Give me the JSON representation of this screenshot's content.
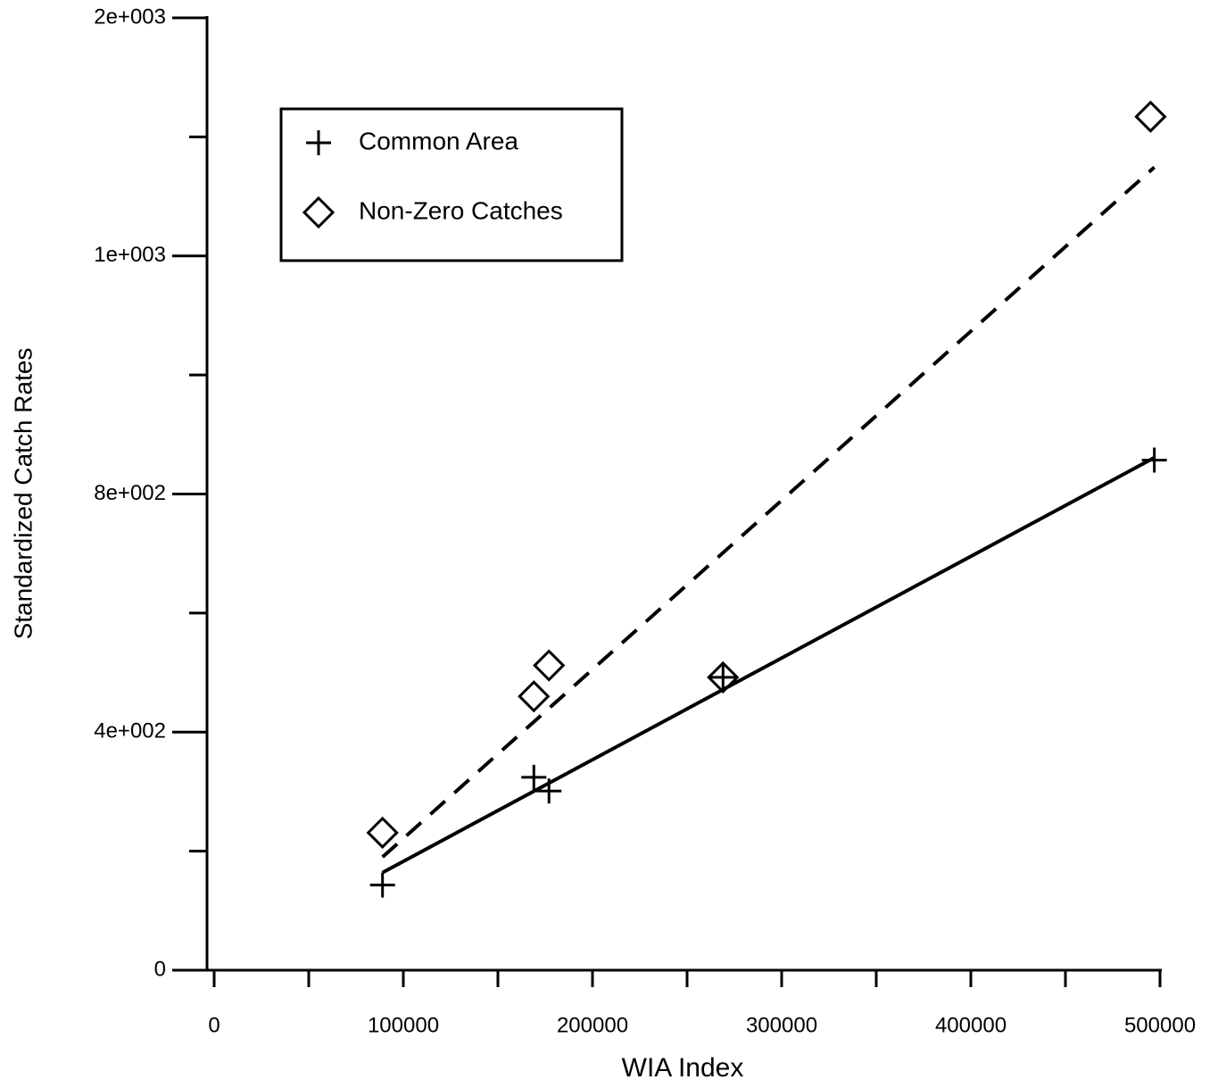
{
  "chart_data": {
    "type": "scatter",
    "xlabel": "WIA Index",
    "ylabel": "Standardized Catch Rates",
    "xlim": [
      0,
      500000
    ],
    "ylim": [
      0,
      1600
    ],
    "xticks": [
      0,
      100000,
      200000,
      300000,
      400000,
      500000
    ],
    "xminor": [
      50000,
      150000,
      250000,
      350000,
      450000
    ],
    "yticks": [
      0,
      {
        "value": 400,
        "label": "4e+002"
      },
      {
        "value": 800,
        "label": "8e+002"
      },
      {
        "value": 1200,
        "label": "1e+003"
      },
      {
        "value": 1600,
        "label": "2e+003"
      }
    ],
    "yminor": [
      200,
      600,
      1000,
      1400
    ],
    "legend": "upper left",
    "series": [
      {
        "name": "Common Area",
        "marker": "plus",
        "color": "#000000",
        "x": [
          89000,
          169000,
          177000,
          269000,
          497000
        ],
        "values": [
          143,
          324,
          301,
          492,
          857
        ],
        "fit": {
          "x": [
            89000,
            497000
          ],
          "values": [
            164,
            861
          ],
          "dashed": false
        }
      },
      {
        "name": "Non-Zero Catches",
        "marker": "diamond",
        "color": "#000000",
        "x": [
          89000,
          169000,
          177000,
          269000,
          495000
        ],
        "values": [
          231,
          460,
          512,
          492,
          1434
        ],
        "fit": {
          "x": [
            89000,
            497000
          ],
          "values": [
            190,
            1349
          ],
          "dashed": true
        }
      }
    ]
  }
}
